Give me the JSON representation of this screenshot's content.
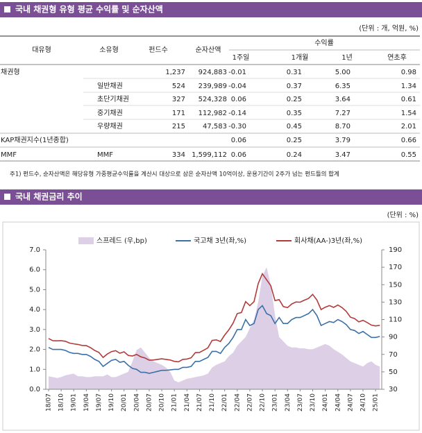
{
  "section1": {
    "title": "국내 채권형 유형 평균 수익률 및 순자산액",
    "unit": "(단위 : 개, 억원, %)"
  },
  "table": {
    "headers": [
      "대유형",
      "소유형",
      "펀드수",
      "순자산액"
    ],
    "group_header": "수익률",
    "sub_headers": [
      "1주일",
      "1개월",
      "1년",
      "연초후"
    ],
    "rows": [
      [
        "채권형",
        null,
        "1,237",
        "924,883",
        "-0.01",
        "0.31",
        "5.00",
        "0.98"
      ],
      [
        null,
        "일반채권",
        "524",
        "239,989",
        "-0.04",
        "0.37",
        "6.35",
        "1.34"
      ],
      [
        null,
        "초단기채권",
        "327",
        "524,328",
        "0.06",
        "0.25",
        "3.64",
        "0.61"
      ],
      [
        null,
        "중기채권",
        "171",
        "112,982",
        "-0.14",
        "0.35",
        "7.27",
        "1.54"
      ],
      [
        null,
        "우량채권",
        "215",
        "47,583",
        "-0.30",
        "0.45",
        "8.70",
        "2.01"
      ],
      [
        "KAP채권지수(1년종합)",
        null,
        null,
        null,
        "0.06",
        "0.25",
        "3.79",
        "0.66"
      ],
      [
        "MMF",
        "MMF",
        "334",
        "1,599,112",
        "0.06",
        "0.24",
        "3.47",
        "0.55"
      ]
    ]
  },
  "footnote": "주1) 펀드수, 순자산액은 해당유형 가중평균수익률을 계산시 대상으로 삼은 순자산액 10억이상, 운용기간이 2주가 넘는 펀드들의 합계",
  "section2": {
    "title": "국내 채권금리 추이",
    "unit": "(단위 : %)"
  },
  "chart_data": {
    "type": "line",
    "categories": [
      "18/07",
      null,
      null,
      "18/10",
      null,
      null,
      "19/01",
      null,
      null,
      "19/04",
      null,
      null,
      "19/07",
      null,
      null,
      "19/10",
      null,
      null,
      "20/01",
      null,
      null,
      "20/04",
      null,
      null,
      "20/07",
      null,
      null,
      "20/10",
      null,
      null,
      "21/01",
      null,
      null,
      "21/04",
      null,
      null,
      "21/07",
      null,
      null,
      "21/10",
      null,
      null,
      "22/01",
      null,
      null,
      "22/04",
      null,
      null,
      "22/07",
      null,
      null,
      "22/10",
      null,
      null,
      "23/01",
      null,
      null,
      "23/04",
      null,
      null,
      "23/07",
      null,
      null,
      "23/10",
      null,
      null,
      "24/01",
      null,
      null,
      "24/04",
      null,
      null,
      "24/07",
      null,
      null,
      "24/10",
      null,
      null,
      "25/01",
      null
    ],
    "series": [
      {
        "name": "스프레드 (우,bp)",
        "color": "#ddd0e6",
        "axis": "y2",
        "kind": "area",
        "values": [
          45,
          44,
          43,
          44,
          46,
          47,
          48,
          45,
          45,
          44,
          44,
          45,
          45,
          45,
          47,
          44,
          44,
          46,
          48,
          50,
          62,
          75,
          78,
          72,
          66,
          62,
          60,
          58,
          55,
          50,
          40,
          38,
          40,
          42,
          43,
          44,
          45,
          46,
          48,
          55,
          58,
          60,
          62,
          68,
          72,
          80,
          85,
          90,
          100,
          110,
          130,
          160,
          170,
          150,
          115,
          90,
          85,
          80,
          78,
          78,
          77,
          77,
          76,
          76,
          78,
          80,
          82,
          80,
          76,
          73,
          70,
          66,
          62,
          60,
          58,
          56,
          60,
          62,
          58,
          56
        ]
      },
      {
        "name": "국고채 3년(좌,%)",
        "color": "#3b6fa8",
        "values": [
          2.1,
          2.0,
          2.0,
          2.0,
          1.95,
          1.85,
          1.8,
          1.8,
          1.75,
          1.75,
          1.65,
          1.5,
          1.4,
          1.15,
          1.3,
          1.45,
          1.5,
          1.35,
          1.4,
          1.2,
          1.05,
          1.0,
          0.85,
          0.85,
          0.8,
          0.85,
          0.9,
          0.95,
          0.95,
          0.97,
          1.0,
          1.0,
          1.1,
          1.1,
          1.15,
          1.4,
          1.4,
          1.5,
          1.6,
          1.9,
          1.9,
          1.8,
          2.1,
          2.3,
          2.6,
          3.0,
          3.0,
          3.5,
          3.2,
          3.3,
          4.0,
          4.2,
          3.8,
          3.7,
          3.3,
          3.6,
          3.3,
          3.3,
          3.5,
          3.6,
          3.6,
          3.7,
          3.8,
          4.0,
          3.7,
          3.2,
          3.3,
          3.4,
          3.35,
          3.5,
          3.4,
          3.25,
          3.0,
          2.95,
          2.8,
          2.9,
          2.75,
          2.6,
          2.6,
          2.65
        ]
      },
      {
        "name": "회사채(AA-)3년(좌,%)",
        "color": "#b23a3a",
        "values": [
          2.55,
          2.44,
          2.43,
          2.44,
          2.41,
          2.32,
          2.28,
          2.25,
          2.2,
          2.19,
          2.09,
          1.95,
          1.85,
          1.6,
          1.77,
          1.89,
          1.94,
          1.81,
          1.88,
          1.7,
          1.67,
          1.75,
          1.63,
          1.57,
          1.46,
          1.47,
          1.5,
          1.53,
          1.5,
          1.47,
          1.4,
          1.38,
          1.5,
          1.52,
          1.58,
          1.84,
          1.85,
          1.96,
          2.08,
          2.45,
          2.48,
          2.4,
          2.72,
          2.98,
          3.32,
          3.8,
          3.85,
          4.4,
          4.2,
          4.4,
          5.3,
          5.8,
          5.5,
          5.2,
          4.45,
          4.5,
          4.15,
          4.1,
          4.28,
          4.38,
          4.37,
          4.47,
          4.56,
          4.76,
          4.48,
          4.0,
          4.12,
          4.2,
          4.11,
          4.23,
          4.1,
          3.91,
          3.62,
          3.55,
          3.38,
          3.46,
          3.35,
          3.22,
          3.18,
          3.21
        ]
      }
    ],
    "ylim": [
      0,
      7
    ],
    "yticks": [
      {
        "value": 0,
        "label": "0.0"
      },
      {
        "value": 1,
        "label": "1.0"
      },
      {
        "value": 2,
        "label": "2.0"
      },
      {
        "value": 3,
        "label": "3.0"
      },
      {
        "value": 4,
        "label": "4.0"
      },
      {
        "value": 5,
        "label": "5.0"
      },
      {
        "value": 6,
        "label": "6.0"
      },
      {
        "value": 7,
        "label": "7.0"
      }
    ],
    "y2lim": [
      30,
      190
    ],
    "y2ticks": [
      30,
      50,
      70,
      90,
      110,
      130,
      150,
      170,
      190
    ],
    "grid": false,
    "legend": "top"
  }
}
